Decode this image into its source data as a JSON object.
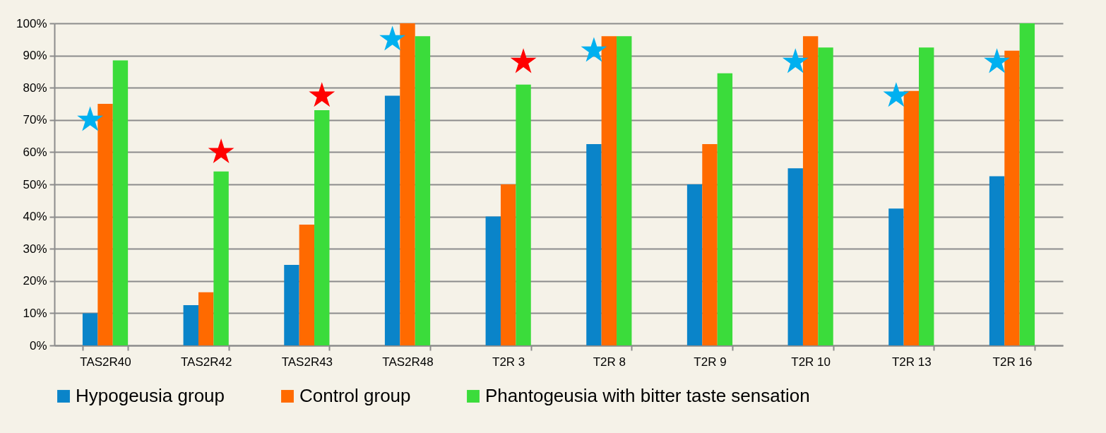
{
  "chart_data": {
    "type": "bar",
    "categories": [
      "TAS2R40",
      "TAS2R42",
      "TAS2R43",
      "TAS2R48",
      "T2R 3",
      "T2R 8",
      "T2R 9",
      "T2R 10",
      "T2R 13",
      "T2R 16"
    ],
    "series": [
      {
        "name": "Hypogeusia group",
        "color": "#0a84c9",
        "values": [
          10,
          12.5,
          25,
          77.5,
          40,
          62.5,
          50,
          55,
          42.5,
          52.5
        ]
      },
      {
        "name": "Control group",
        "color": "#ff6a00",
        "values": [
          75,
          16.5,
          37.5,
          100,
          50,
          96,
          62.5,
          96,
          79,
          91.5
        ]
      },
      {
        "name": "Phantogeusia with bitter taste sensation",
        "color": "#3bdc3b",
        "values": [
          88.5,
          54,
          73,
          96,
          81,
          96,
          84.5,
          92.5,
          92.5,
          100
        ]
      },
      {
        "type": "scatter",
        "marker": "star",
        "color": "#00b0f0",
        "x": [
          "TAS2R40",
          "TAS2R48",
          "T2R 8",
          "T2R 10",
          "T2R 13",
          "T2R 16"
        ],
        "values": [
          70,
          95,
          91.5,
          88,
          77.5,
          88
        ]
      },
      {
        "type": "scatter",
        "marker": "star",
        "color": "#ff0000",
        "x": [
          "TAS2R42",
          "TAS2R43",
          "T2R 3"
        ],
        "values": [
          60,
          77.5,
          88
        ]
      }
    ],
    "ylim": [
      0,
      100
    ],
    "yticks": [
      {
        "value": 0,
        "label": "0%"
      },
      {
        "value": 10,
        "label": "10%"
      },
      {
        "value": 20,
        "label": "20%"
      },
      {
        "value": 30,
        "label": "30%"
      },
      {
        "value": 40,
        "label": "40%"
      },
      {
        "value": 50,
        "label": "50%"
      },
      {
        "value": 60,
        "label": "60%"
      },
      {
        "value": 70,
        "label": "70%"
      },
      {
        "value": 80,
        "label": "80%"
      },
      {
        "value": 90,
        "label": "90%"
      },
      {
        "value": 100,
        "label": "100%"
      }
    ],
    "grid": "y",
    "legend": "bottom"
  }
}
